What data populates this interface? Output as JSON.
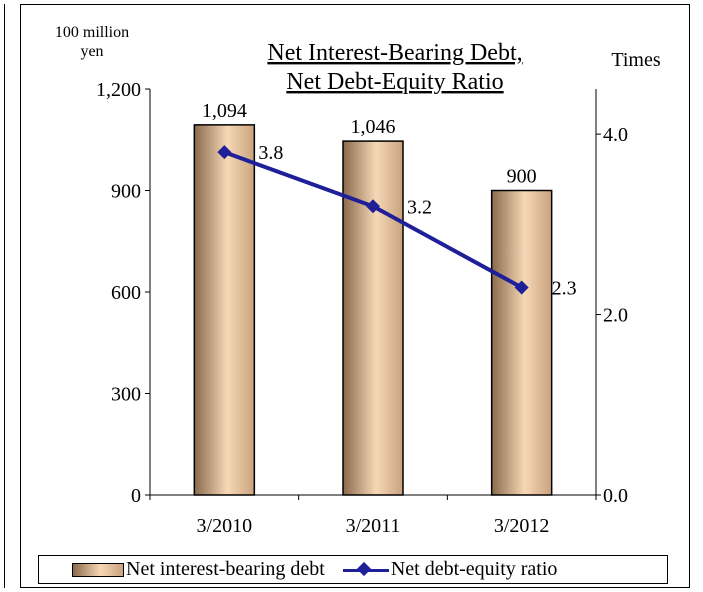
{
  "chart_data": {
    "type": "bar+line",
    "title_line1": "Net Interest-Bearing Debt,",
    "title_line2": "Net Debt-Equity Ratio",
    "y_left_unit_line1": "100 million",
    "y_left_unit_line2": "yen",
    "y_right_unit": "Times",
    "categories": [
      "3/2010",
      "3/2011",
      "3/2012"
    ],
    "y_left": {
      "min": 0,
      "max": 1200,
      "ticks": [
        "0",
        "300",
        "600",
        "900",
        "1,200"
      ],
      "tick_values": [
        0,
        300,
        600,
        900,
        1200
      ]
    },
    "y_right": {
      "min": 0,
      "max": 4.5,
      "ticks": [
        "0.0",
        "2.0",
        "4.0"
      ],
      "tick_values": [
        0,
        2,
        4
      ]
    },
    "series": [
      {
        "name": "Net interest-bearing debt",
        "kind": "bar",
        "axis": "left",
        "values": [
          1094,
          1046,
          900
        ],
        "labels": [
          "1,094",
          "1,046",
          "900"
        ]
      },
      {
        "name": "Net debt-equity ratio",
        "kind": "line",
        "axis": "right",
        "values": [
          3.8,
          3.2,
          2.3
        ],
        "labels": [
          "3.8",
          "3.2",
          "2.3"
        ]
      }
    ],
    "colors": {
      "line": "#1f1f99",
      "bar_dark": "#8a6a4c",
      "bar_light": "#f6d8b6"
    },
    "grid": false,
    "legend_position": "bottom"
  }
}
